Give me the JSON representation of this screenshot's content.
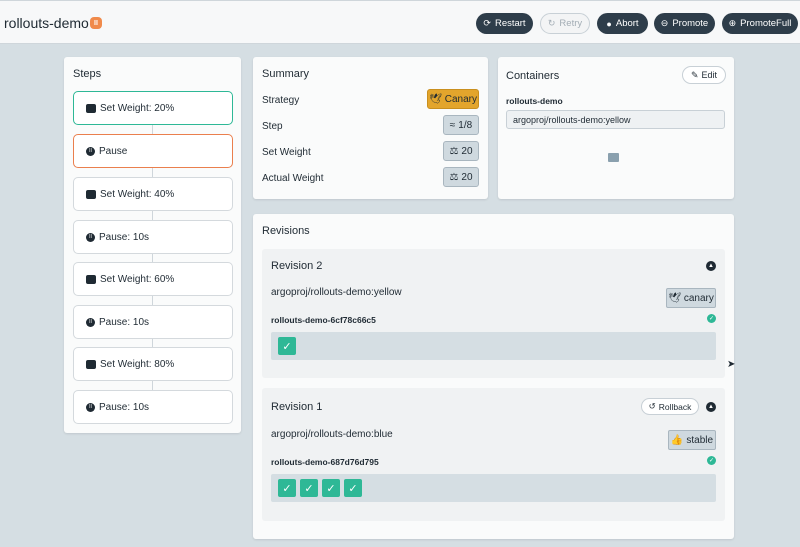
{
  "app": {
    "title": "rollouts-demo",
    "status_icon": "pause-icon",
    "status_color": "#f08a4b"
  },
  "toolbar": {
    "restart": "Restart",
    "retry": "Retry",
    "abort": "Abort",
    "promote": "Promote",
    "promote_full": "PromoteFull"
  },
  "steps": {
    "title": "Steps",
    "items": [
      {
        "label": "Set Weight: 20%",
        "icon": "weight-icon",
        "state": "completed"
      },
      {
        "label": "Pause",
        "icon": "pause-icon",
        "state": "active"
      },
      {
        "label": "Set Weight: 40%",
        "icon": "weight-icon",
        "state": "pending"
      },
      {
        "label": "Pause: 10s",
        "icon": "pause-icon",
        "state": "pending"
      },
      {
        "label": "Set Weight: 60%",
        "icon": "weight-icon",
        "state": "pending"
      },
      {
        "label": "Pause: 10s",
        "icon": "pause-icon",
        "state": "pending"
      },
      {
        "label": "Set Weight: 80%",
        "icon": "weight-icon",
        "state": "pending"
      },
      {
        "label": "Pause: 10s",
        "icon": "pause-icon",
        "state": "pending"
      }
    ]
  },
  "summary": {
    "title": "Summary",
    "rows": [
      {
        "label": "Strategy",
        "value": "Canary",
        "icon": "bird-icon"
      },
      {
        "label": "Step",
        "value": "1/8",
        "icon": "shoe-icon"
      },
      {
        "label": "Set Weight",
        "value": "20",
        "icon": "scale-icon"
      },
      {
        "label": "Actual Weight",
        "value": "20",
        "icon": "scale-icon"
      }
    ]
  },
  "containers": {
    "title": "Containers",
    "edit_label": "Edit",
    "name": "rollouts-demo",
    "image": "argoproj/rollouts-demo:yellow"
  },
  "revisions": {
    "title": "Revisions",
    "items": [
      {
        "title": "Revision 2",
        "image": "argoproj/rollouts-demo:yellow",
        "tag": "canary",
        "replicaset": "rollouts-demo-6cf78c66c5",
        "pods": 1
      },
      {
        "title": "Revision 1",
        "rollback_label": "Rollback",
        "image": "argoproj/rollouts-demo:blue",
        "tag": "stable",
        "replicaset": "rollouts-demo-687d76d795",
        "pods": 4
      }
    ]
  },
  "colors": {
    "healthy": "#2eb896",
    "canary": "#e3a52c",
    "dark": "#2e3d4a"
  }
}
